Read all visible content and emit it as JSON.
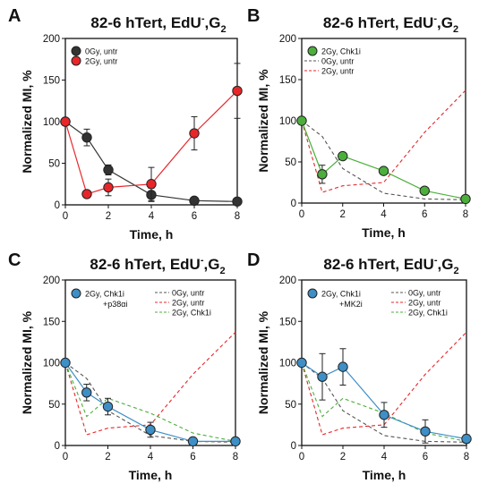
{
  "chart_data": [
    {
      "panel": "A",
      "type": "line",
      "title": "82-6 hTert, EdU",
      "title_sup": "-",
      "title_end": ",G",
      "title_sub": "2",
      "xlabel": "Time, h",
      "ylabel": "Normalized MI, %",
      "xlim": [
        0,
        8
      ],
      "ylim": [
        0,
        200
      ],
      "xticks": [
        0,
        2,
        4,
        6,
        8
      ],
      "yticks": [
        0,
        50,
        100,
        150,
        200
      ],
      "legend_position": "top-left",
      "series": [
        {
          "name": "0Gy, untr",
          "style": "marker",
          "color": "#333333",
          "x": [
            0,
            1,
            2,
            4,
            6,
            8
          ],
          "y": [
            100,
            81,
            42,
            12,
            5,
            4
          ],
          "err": [
            0,
            10,
            6,
            8,
            0,
            0
          ]
        },
        {
          "name": "2Gy, untr",
          "style": "marker",
          "color": "#e8262a",
          "x": [
            0,
            1,
            2,
            4,
            6,
            8
          ],
          "y": [
            100,
            13,
            21,
            25,
            86,
            137
          ],
          "err": [
            0,
            0,
            10,
            20,
            20,
            33
          ]
        }
      ]
    },
    {
      "panel": "B",
      "type": "line",
      "title": "82-6 hTert, EdU",
      "title_sup": "-",
      "title_end": ",G",
      "title_sub": "2",
      "xlabel": "Time, h",
      "ylabel": "Normalized MI, %",
      "xlim": [
        0,
        8
      ],
      "ylim": [
        0,
        200
      ],
      "xticks": [
        0,
        2,
        4,
        6,
        8
      ],
      "yticks": [
        0,
        50,
        100,
        150,
        200
      ],
      "legend_position": "top-left",
      "series": [
        {
          "name": "2Gy, Chk1i",
          "style": "marker",
          "color": "#4caf3c",
          "x": [
            0,
            1,
            2,
            4,
            6,
            8
          ],
          "y": [
            100,
            35,
            57,
            39,
            15,
            5
          ],
          "err": [
            0,
            11,
            0,
            0,
            0,
            0
          ]
        },
        {
          "name": "0Gy, untr",
          "style": "dashed",
          "color": "#555555",
          "x": [
            0,
            1,
            2,
            4,
            6,
            8
          ],
          "y": [
            100,
            81,
            42,
            12,
            5,
            4
          ]
        },
        {
          "name": "2Gy, untr",
          "style": "dashed",
          "color": "#e8262a",
          "x": [
            0,
            1,
            2,
            4,
            6,
            8
          ],
          "y": [
            100,
            13,
            21,
            25,
            86,
            137
          ]
        }
      ]
    },
    {
      "panel": "C",
      "type": "line",
      "title": "82-6 hTert, EdU",
      "title_sup": "-",
      "title_end": ",G",
      "title_sub": "2",
      "xlabel": "Time, h",
      "ylabel": "Normalized MI, %",
      "xlim": [
        0,
        8
      ],
      "ylim": [
        0,
        200
      ],
      "xticks": [
        0,
        2,
        4,
        6,
        8
      ],
      "yticks": [
        0,
        50,
        100,
        150,
        200
      ],
      "legend_position": "top",
      "series": [
        {
          "name": "2Gy, Chk1i",
          "name2": "+p38αi",
          "style": "marker",
          "color": "#3d8fc6",
          "x": [
            0,
            1,
            2,
            4,
            6,
            8
          ],
          "y": [
            100,
            64,
            47,
            19,
            5,
            5
          ],
          "err": [
            0,
            10,
            10,
            9,
            0,
            0
          ]
        },
        {
          "name": "0Gy, untr",
          "style": "dashed",
          "color": "#555555",
          "x": [
            0,
            1,
            2,
            4,
            6,
            8
          ],
          "y": [
            100,
            81,
            42,
            12,
            5,
            4
          ]
        },
        {
          "name": "2Gy, untr",
          "style": "dashed",
          "color": "#e8262a",
          "x": [
            0,
            1,
            2,
            4,
            6,
            8
          ],
          "y": [
            100,
            13,
            21,
            25,
            86,
            137
          ]
        },
        {
          "name": "2Gy, Chk1i",
          "style": "dashed",
          "color": "#4caf3c",
          "x": [
            0,
            1,
            2,
            4,
            6,
            8
          ],
          "y": [
            100,
            35,
            57,
            39,
            15,
            5
          ]
        }
      ]
    },
    {
      "panel": "D",
      "type": "line",
      "title": "82-6 hTert, EdU",
      "title_sup": "-",
      "title_end": ",G",
      "title_sub": "2",
      "xlabel": "Time, h",
      "ylabel": "Normalized MI, %",
      "xlim": [
        0,
        8
      ],
      "ylim": [
        0,
        200
      ],
      "xticks": [
        0,
        2,
        4,
        6,
        8
      ],
      "yticks": [
        0,
        50,
        100,
        150,
        200
      ],
      "legend_position": "top",
      "series": [
        {
          "name": "2Gy, Chk1i",
          "name2": "+MK2i",
          "style": "marker",
          "color": "#3d8fc6",
          "x": [
            0,
            1,
            2,
            4,
            6,
            8
          ],
          "y": [
            100,
            83,
            95,
            37,
            17,
            8
          ],
          "err": [
            0,
            28,
            22,
            15,
            14,
            5
          ]
        },
        {
          "name": "0Gy, untr",
          "style": "dashed",
          "color": "#555555",
          "x": [
            0,
            1,
            2,
            4,
            6,
            8
          ],
          "y": [
            100,
            81,
            42,
            12,
            5,
            4
          ]
        },
        {
          "name": "2Gy, untr",
          "style": "dashed",
          "color": "#e8262a",
          "x": [
            0,
            1,
            2,
            4,
            6,
            8
          ],
          "y": [
            100,
            13,
            21,
            25,
            86,
            137
          ]
        },
        {
          "name": "2Gy, Chk1i",
          "style": "dashed",
          "color": "#4caf3c",
          "x": [
            0,
            1,
            2,
            4,
            6,
            8
          ],
          "y": [
            100,
            35,
            57,
            39,
            15,
            5
          ]
        }
      ]
    }
  ]
}
